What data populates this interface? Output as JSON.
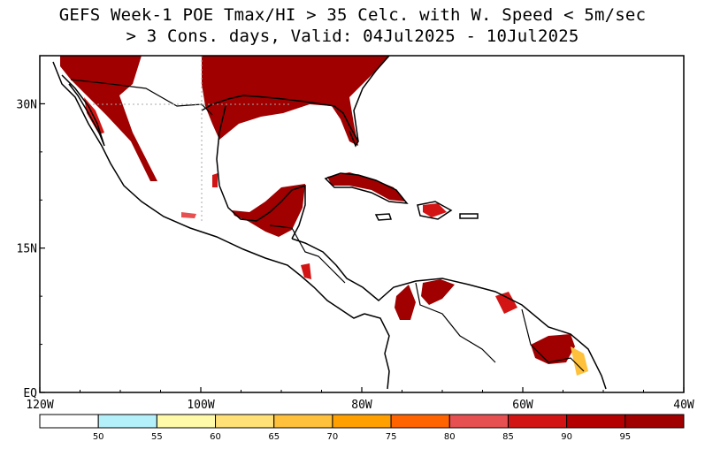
{
  "title": {
    "line1": "GEFS Week-1 POE Tmax/HI > 35 Celc. with W. Speed < 5m/sec",
    "line2": "> 3 Cons. days, Valid: 04Jul2025 - 10Jul2025"
  },
  "map": {
    "x_ticks": [
      {
        "lon": -120,
        "label": "120W"
      },
      {
        "lon": -100,
        "label": "100W"
      },
      {
        "lon": -80,
        "label": "80W"
      },
      {
        "lon": -60,
        "label": "60W"
      },
      {
        "lon": -40,
        "label": "40W"
      }
    ],
    "y_ticks": [
      {
        "lat": 30,
        "label": "30N"
      },
      {
        "lat": 15,
        "label": "15N"
      },
      {
        "lat": 0,
        "label": "EQ"
      }
    ],
    "lon_range": [
      -120,
      -40
    ],
    "lat_range": [
      0,
      35
    ]
  },
  "colorbar": {
    "levels": [
      "50",
      "55",
      "60",
      "65",
      "70",
      "75",
      "80",
      "85",
      "90",
      "95"
    ],
    "colors": [
      "#ffffff",
      "#b4f0fa",
      "#fffaaa",
      "#ffe178",
      "#ffc13c",
      "#ffa000",
      "#ff6400",
      "#e65050",
      "#d21414",
      "#b40000",
      "#a00000"
    ]
  }
}
